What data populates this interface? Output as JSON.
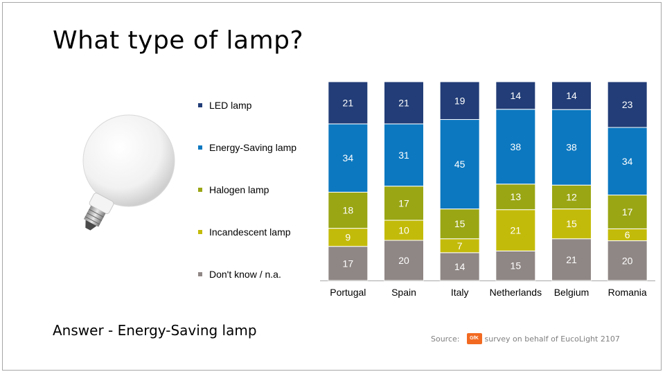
{
  "title": "What type of lamp?",
  "answer": "Answer - Energy-Saving lamp",
  "source": {
    "prefix": "Source:",
    "logo_text": "GfK",
    "text": "survey on behalf of EucoLight 2107"
  },
  "chart_data": {
    "type": "bar",
    "stacked": true,
    "categories": [
      "Portugal",
      "Spain",
      "Italy",
      "Netherlands",
      "Belgium",
      "Romania"
    ],
    "series": [
      {
        "name": "Don't know / n.a.",
        "color": "#8f8785",
        "values": [
          17,
          20,
          14,
          15,
          21,
          20
        ]
      },
      {
        "name": "Incandescent lamp",
        "color": "#c3bb0a",
        "values": [
          9,
          10,
          7,
          21,
          15,
          6
        ]
      },
      {
        "name": "Halogen lamp",
        "color": "#9aa614",
        "values": [
          18,
          17,
          15,
          13,
          12,
          17
        ]
      },
      {
        "name": "Energy-Saving lamp",
        "color": "#0c78c0",
        "values": [
          34,
          31,
          45,
          38,
          38,
          34
        ]
      },
      {
        "name": "LED lamp",
        "color": "#223d77",
        "values": [
          21,
          21,
          19,
          14,
          14,
          23
        ]
      }
    ],
    "legend_order": [
      "LED lamp",
      "Energy-Saving lamp",
      "Halogen lamp",
      "Incandescent lamp",
      "Don't know / n.a."
    ],
    "legend_position": "left",
    "ylim": [
      0,
      100
    ],
    "grid": false
  }
}
